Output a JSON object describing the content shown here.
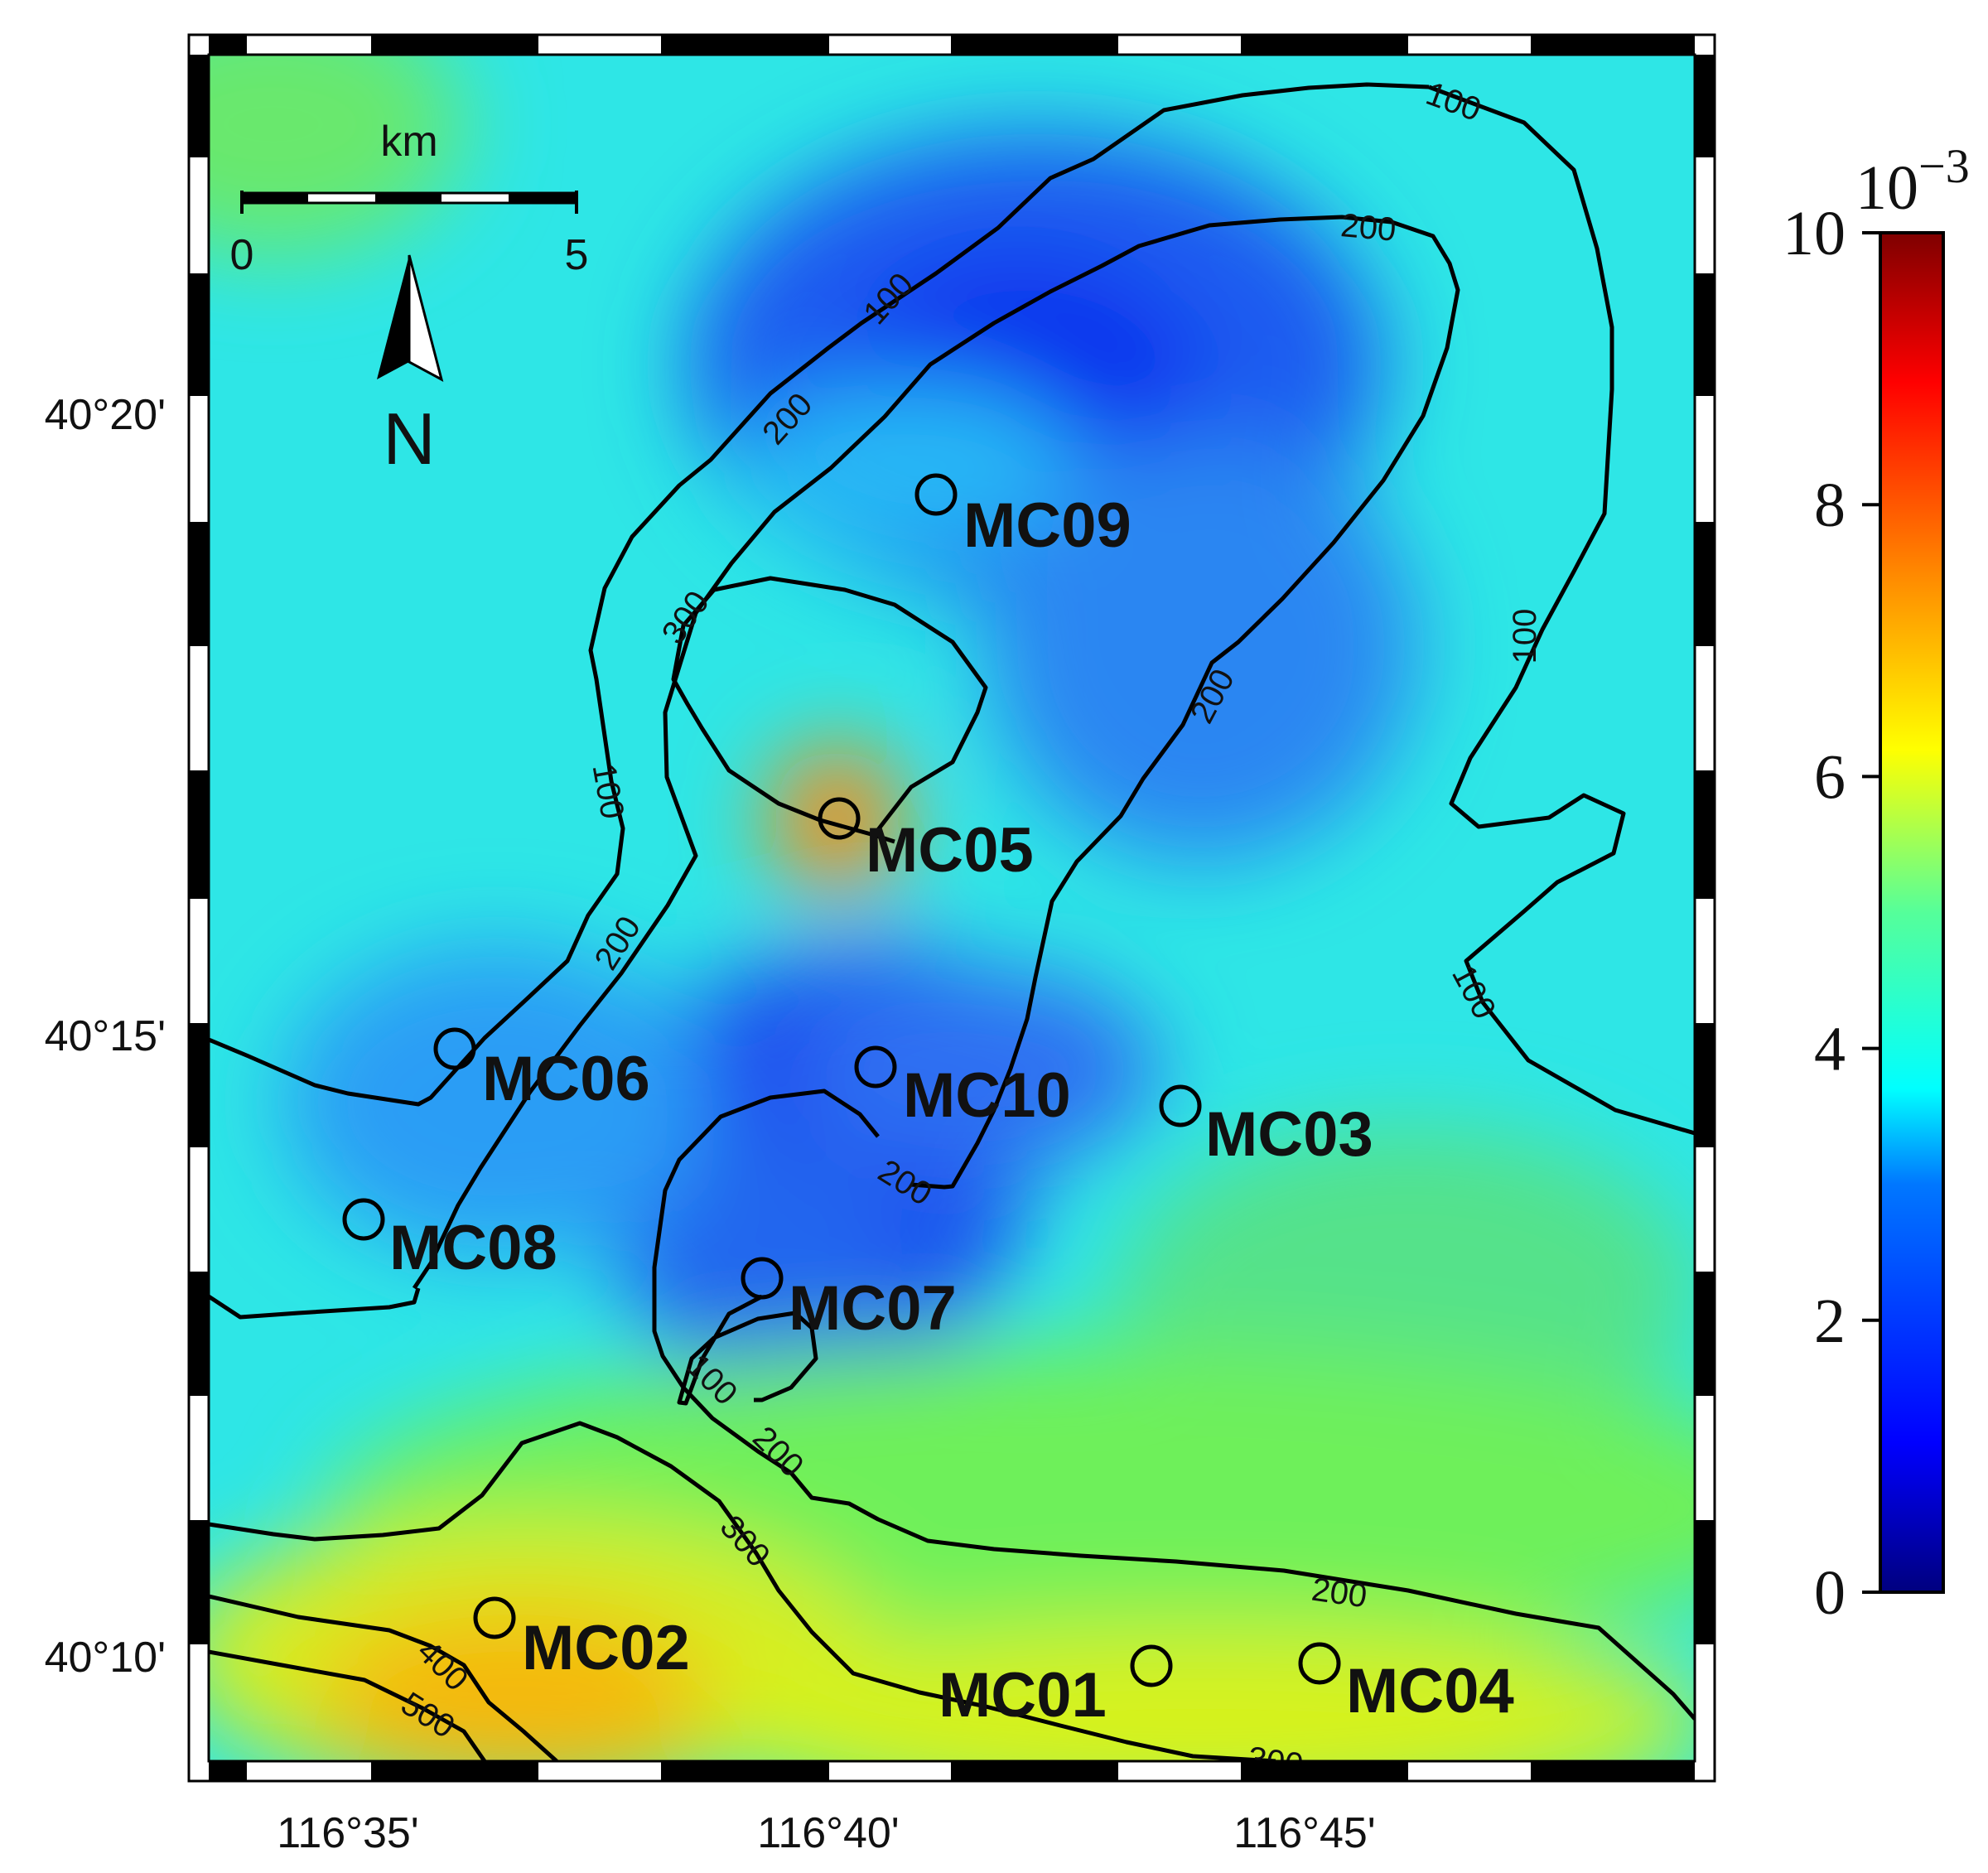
{
  "map": {
    "x_ticks": [
      "116°35'",
      "116°40'",
      "116°45'"
    ],
    "y_ticks": [
      "40°20'",
      "40°15'",
      "40°10'"
    ],
    "stations": [
      "MC01",
      "MC02",
      "MC03",
      "MC04",
      "MC05",
      "MC06",
      "MC07",
      "MC08",
      "MC09",
      "MC10"
    ],
    "contour_labels": [
      "100",
      "200",
      "300",
      "400",
      "500"
    ],
    "scale_bar": {
      "unit": "km",
      "min_label": "0",
      "max_label": "5"
    },
    "north_label": "N"
  },
  "colorbar": {
    "exponent_base": "10",
    "exponent_power": "−3",
    "ticks": [
      "0",
      "2",
      "4",
      "6",
      "8",
      "10"
    ],
    "colors": [
      "#00007f",
      "#0000ff",
      "#007fff",
      "#00ffff",
      "#7fff7f",
      "#ffff00",
      "#ff7f00",
      "#ff0000",
      "#7f0000"
    ]
  }
}
